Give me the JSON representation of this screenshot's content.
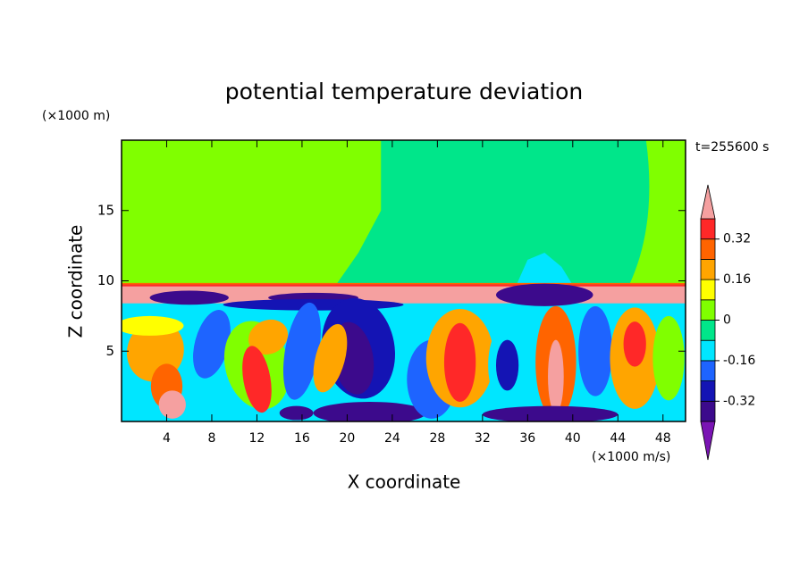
{
  "chart_data": {
    "type": "contour",
    "title": "potential temperature deviation",
    "xlabel": "X coordinate",
    "ylabel": "Z coordinate",
    "x_unit": "(×1000 m/s)",
    "y_unit": "(×1000 m)",
    "time_label": "t=255600 s",
    "xlim": [
      0,
      50
    ],
    "ylim": [
      0,
      20
    ],
    "xticks": [
      4,
      8,
      12,
      16,
      20,
      24,
      28,
      32,
      36,
      40,
      44,
      48
    ],
    "yticks": [
      5,
      10,
      15
    ],
    "levels": [
      -0.4,
      -0.32,
      -0.24,
      -0.16,
      -0.08,
      0,
      0.08,
      0.16,
      0.24,
      0.32,
      0.4
    ],
    "colors": [
      "#7a14b4",
      "#3c0a8c",
      "#1414b4",
      "#1e64ff",
      "#00e6ff",
      "#00e68a",
      "#80ff00",
      "#ffff00",
      "#ffa500",
      "#ff6400",
      "#ff2828",
      "#f5a0a0"
    ],
    "colorbar_ticks": [
      -0.32,
      -0.16,
      0,
      0.16,
      0.32
    ]
  }
}
